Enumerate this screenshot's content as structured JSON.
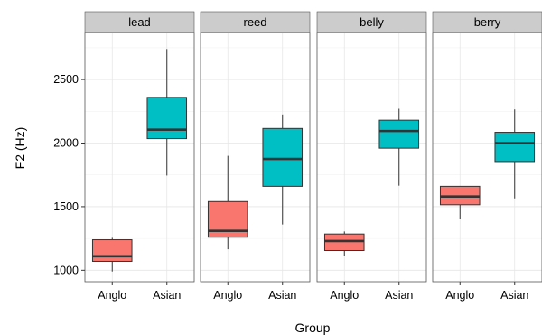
{
  "chart_data": {
    "type": "boxplot",
    "xlabel": "Group",
    "ylabel": "F2 (Hz)",
    "ylim": [
      910,
      2870
    ],
    "yticks": [
      1000,
      1500,
      2000,
      2500
    ],
    "groups": [
      "Anglo",
      "Asian"
    ],
    "group_colors": {
      "Anglo": "#F8766D",
      "Asian": "#00BFC4"
    },
    "facet_strip_color": "#CCCCCC",
    "panel_background": "#FFFFFF",
    "grid": true,
    "legend": "none",
    "facets": [
      {
        "name": "lead",
        "boxes": [
          {
            "group": "Anglo",
            "min": 990,
            "q1": 1070,
            "median": 1110,
            "q3": 1240,
            "max": 1255
          },
          {
            "group": "Asian",
            "min": 1745,
            "q1": 2035,
            "median": 2105,
            "q3": 2360,
            "max": 2740
          }
        ]
      },
      {
        "name": "reed",
        "boxes": [
          {
            "group": "Anglo",
            "min": 1165,
            "q1": 1260,
            "median": 1310,
            "q3": 1540,
            "max": 1900
          },
          {
            "group": "Asian",
            "min": 1360,
            "q1": 1660,
            "median": 1875,
            "q3": 2115,
            "max": 2225
          }
        ]
      },
      {
        "name": "belly",
        "boxes": [
          {
            "group": "Anglo",
            "min": 1115,
            "q1": 1155,
            "median": 1230,
            "q3": 1285,
            "max": 1305
          },
          {
            "group": "Asian",
            "min": 1665,
            "q1": 1960,
            "median": 2095,
            "q3": 2180,
            "max": 2270
          }
        ]
      },
      {
        "name": "berry",
        "boxes": [
          {
            "group": "Anglo",
            "min": 1400,
            "q1": 1515,
            "median": 1580,
            "q3": 1660,
            "max": 1660
          },
          {
            "group": "Asian",
            "min": 1565,
            "q1": 1855,
            "median": 2000,
            "q3": 2085,
            "max": 2265
          }
        ]
      }
    ]
  }
}
